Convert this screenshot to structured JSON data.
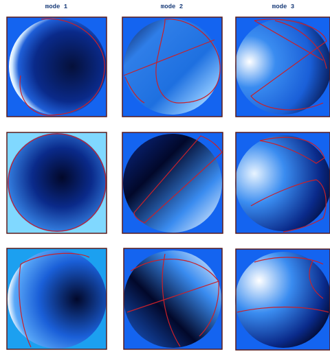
{
  "header": {
    "titles": [
      "mode 1",
      "mode 2",
      "mode 3"
    ]
  }
}
